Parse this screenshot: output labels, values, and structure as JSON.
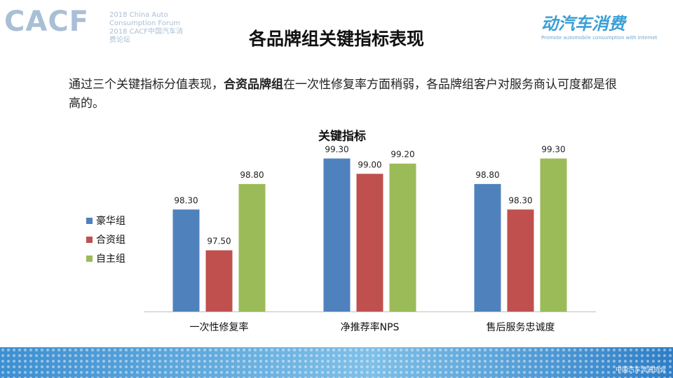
{
  "header": {
    "logo_left_mark": "CACF",
    "logo_left_sub": "2018 China Auto\nConsumption Forum\n2018 CACF中国汽车消费论坛",
    "logo_right_main": "动汽车消费",
    "logo_right_sub": "Promote automobile consumption with Internet"
  },
  "slide_title": "各品牌组关键指标表现",
  "description": {
    "part1": "通过三个关键指标分值表现，",
    "bold": "合资品牌组",
    "part2": "在一次性修复率方面稍弱，各品牌组客户对服务商认可度都是很高的。"
  },
  "chart_data": {
    "type": "bar",
    "title": "关键指标",
    "categories": [
      "一次性修复率",
      "净推荐率NPS",
      "售后服务忠诚度"
    ],
    "series": [
      {
        "name": "豪华组",
        "color": "#4f81bd",
        "values": [
          98.3,
          99.3,
          98.8
        ],
        "labels": [
          "98.30",
          "99.30",
          "98.80"
        ]
      },
      {
        "name": "合资组",
        "color": "#c0504d",
        "values": [
          97.5,
          99.0,
          98.3
        ],
        "labels": [
          "97.50",
          "99.00",
          "98.30"
        ]
      },
      {
        "name": "自主组",
        "color": "#9bbb59",
        "values": [
          98.8,
          99.2,
          99.3
        ],
        "labels": [
          "98.80",
          "99.20",
          "99.30"
        ]
      }
    ],
    "ylim": [
      96.3,
      99.8
    ],
    "grid": false,
    "legend_position": "left"
  },
  "footer": {
    "org": "中国汽车流通协会"
  }
}
